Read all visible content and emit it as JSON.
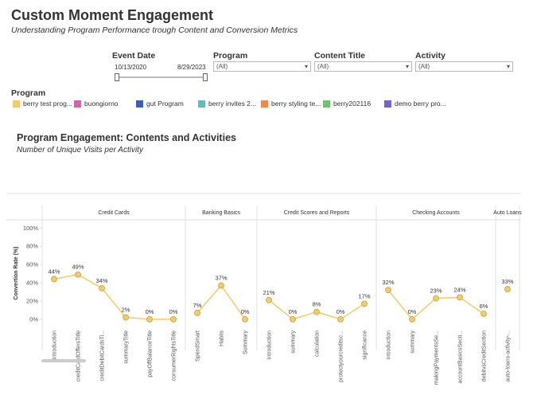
{
  "header": {
    "title": "Custom Moment Engagement",
    "subtitle": "Understanding Program Performance trough Content and Conversion Metrics"
  },
  "filters": {
    "event_date": {
      "label": "Event Date",
      "start": "10/13/2020",
      "end": "8/29/2023"
    },
    "dropdowns": [
      {
        "label": "Program",
        "value": "(All)"
      },
      {
        "label": "Content Title",
        "value": "(All)"
      },
      {
        "label": "Activity",
        "value": "(All)"
      }
    ]
  },
  "program_legend": {
    "title": "Program",
    "items": [
      {
        "name": "berry test prog...",
        "color": "#f2cb6b"
      },
      {
        "name": "buongiorno",
        "color": "#e05bb4"
      },
      {
        "name": "gut Program",
        "color": "#3a5fc4"
      },
      {
        "name": "berry invites 2...",
        "color": "#55c1c0"
      },
      {
        "name": "berry styling te...",
        "color": "#f08a4b"
      },
      {
        "name": "berry202116",
        "color": "#6cc46c"
      },
      {
        "name": "demo berry pro...",
        "color": "#7b5fd9"
      }
    ]
  },
  "chart_data": {
    "type": "line",
    "title": "Program Engagement: Contents and Activities",
    "subtitle": "Number of Unique Visits per Activity",
    "y_label": "Convertion Rate (%)",
    "color": "#f2cb6b",
    "ylim": [
      -8,
      109
    ],
    "yticks": [
      {
        "value": 0,
        "label": "0%"
      },
      {
        "value": 20,
        "label": "20%"
      },
      {
        "value": 40,
        "label": "40%"
      },
      {
        "value": 60,
        "label": "60%"
      },
      {
        "value": 80,
        "label": "80%"
      },
      {
        "value": 100,
        "label": "100%"
      }
    ],
    "panels": [
      {
        "name": "Credit Cards",
        "categories": [
          "introduction",
          "creditCardOffersTitle",
          "creditDebitCardsTi...",
          "summaryTitle",
          "payOffBalanceTitle",
          "consumerRightsTitle"
        ],
        "values": [
          44,
          49,
          34,
          2,
          0,
          0
        ],
        "value_labels": [
          "44%",
          "49%",
          "34%",
          "2%",
          "0%",
          "0%"
        ]
      },
      {
        "name": "Banking Basics",
        "categories": [
          "SpendSmart",
          "Habits",
          "Summary"
        ],
        "values": [
          7,
          37,
          0
        ],
        "value_labels": [
          "7%",
          "37%",
          "0%"
        ]
      },
      {
        "name": "Credit Scores and Reports",
        "categories": [
          "introduction",
          "summary",
          "calculation",
          "protectyourcreditsc...",
          "significance"
        ],
        "values": [
          21,
          0,
          8,
          0,
          17
        ],
        "value_labels": [
          "21%",
          "0%",
          "8%",
          "0%",
          "17%"
        ]
      },
      {
        "name": "Checking Accounts",
        "categories": [
          "introduction",
          "summary",
          "makingPaymentsSe...",
          "accountBasicsSecti...",
          "debitvsCreditSection"
        ],
        "values": [
          32,
          0,
          23,
          24,
          6
        ],
        "value_labels": [
          "32%",
          "0%",
          "23%",
          "24%",
          "6%"
        ]
      },
      {
        "name": "Auto Loans",
        "categories": [
          "auto-loans-activity-..."
        ],
        "values": [
          33
        ],
        "value_labels": [
          "33%"
        ]
      }
    ]
  }
}
